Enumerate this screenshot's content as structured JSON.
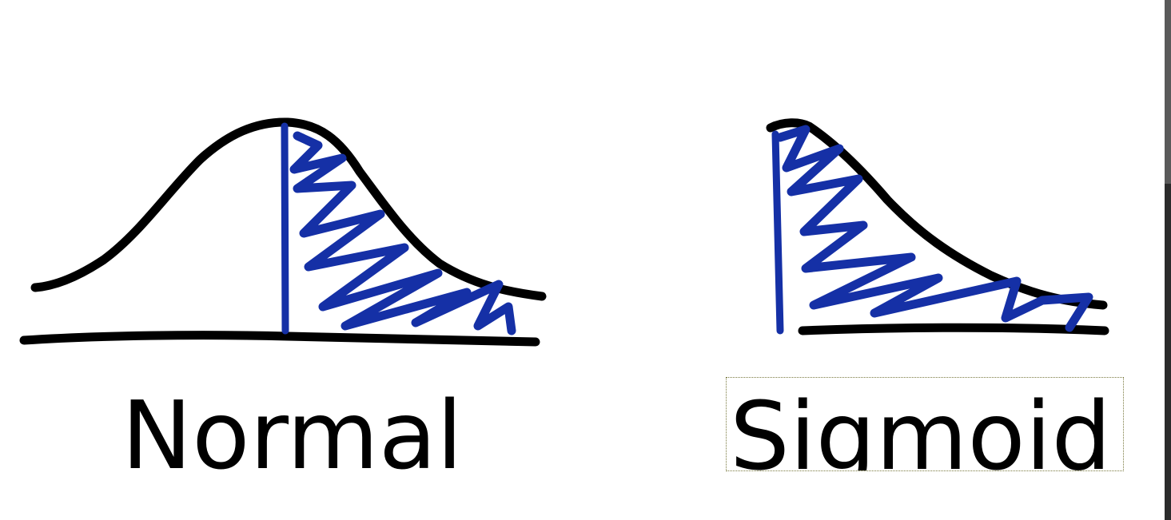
{
  "labels": {
    "left": "Normal",
    "right": "Sigmoid"
  },
  "colors": {
    "ink": "#000000",
    "shade": "#1530a6",
    "background": "#ffffff"
  }
}
